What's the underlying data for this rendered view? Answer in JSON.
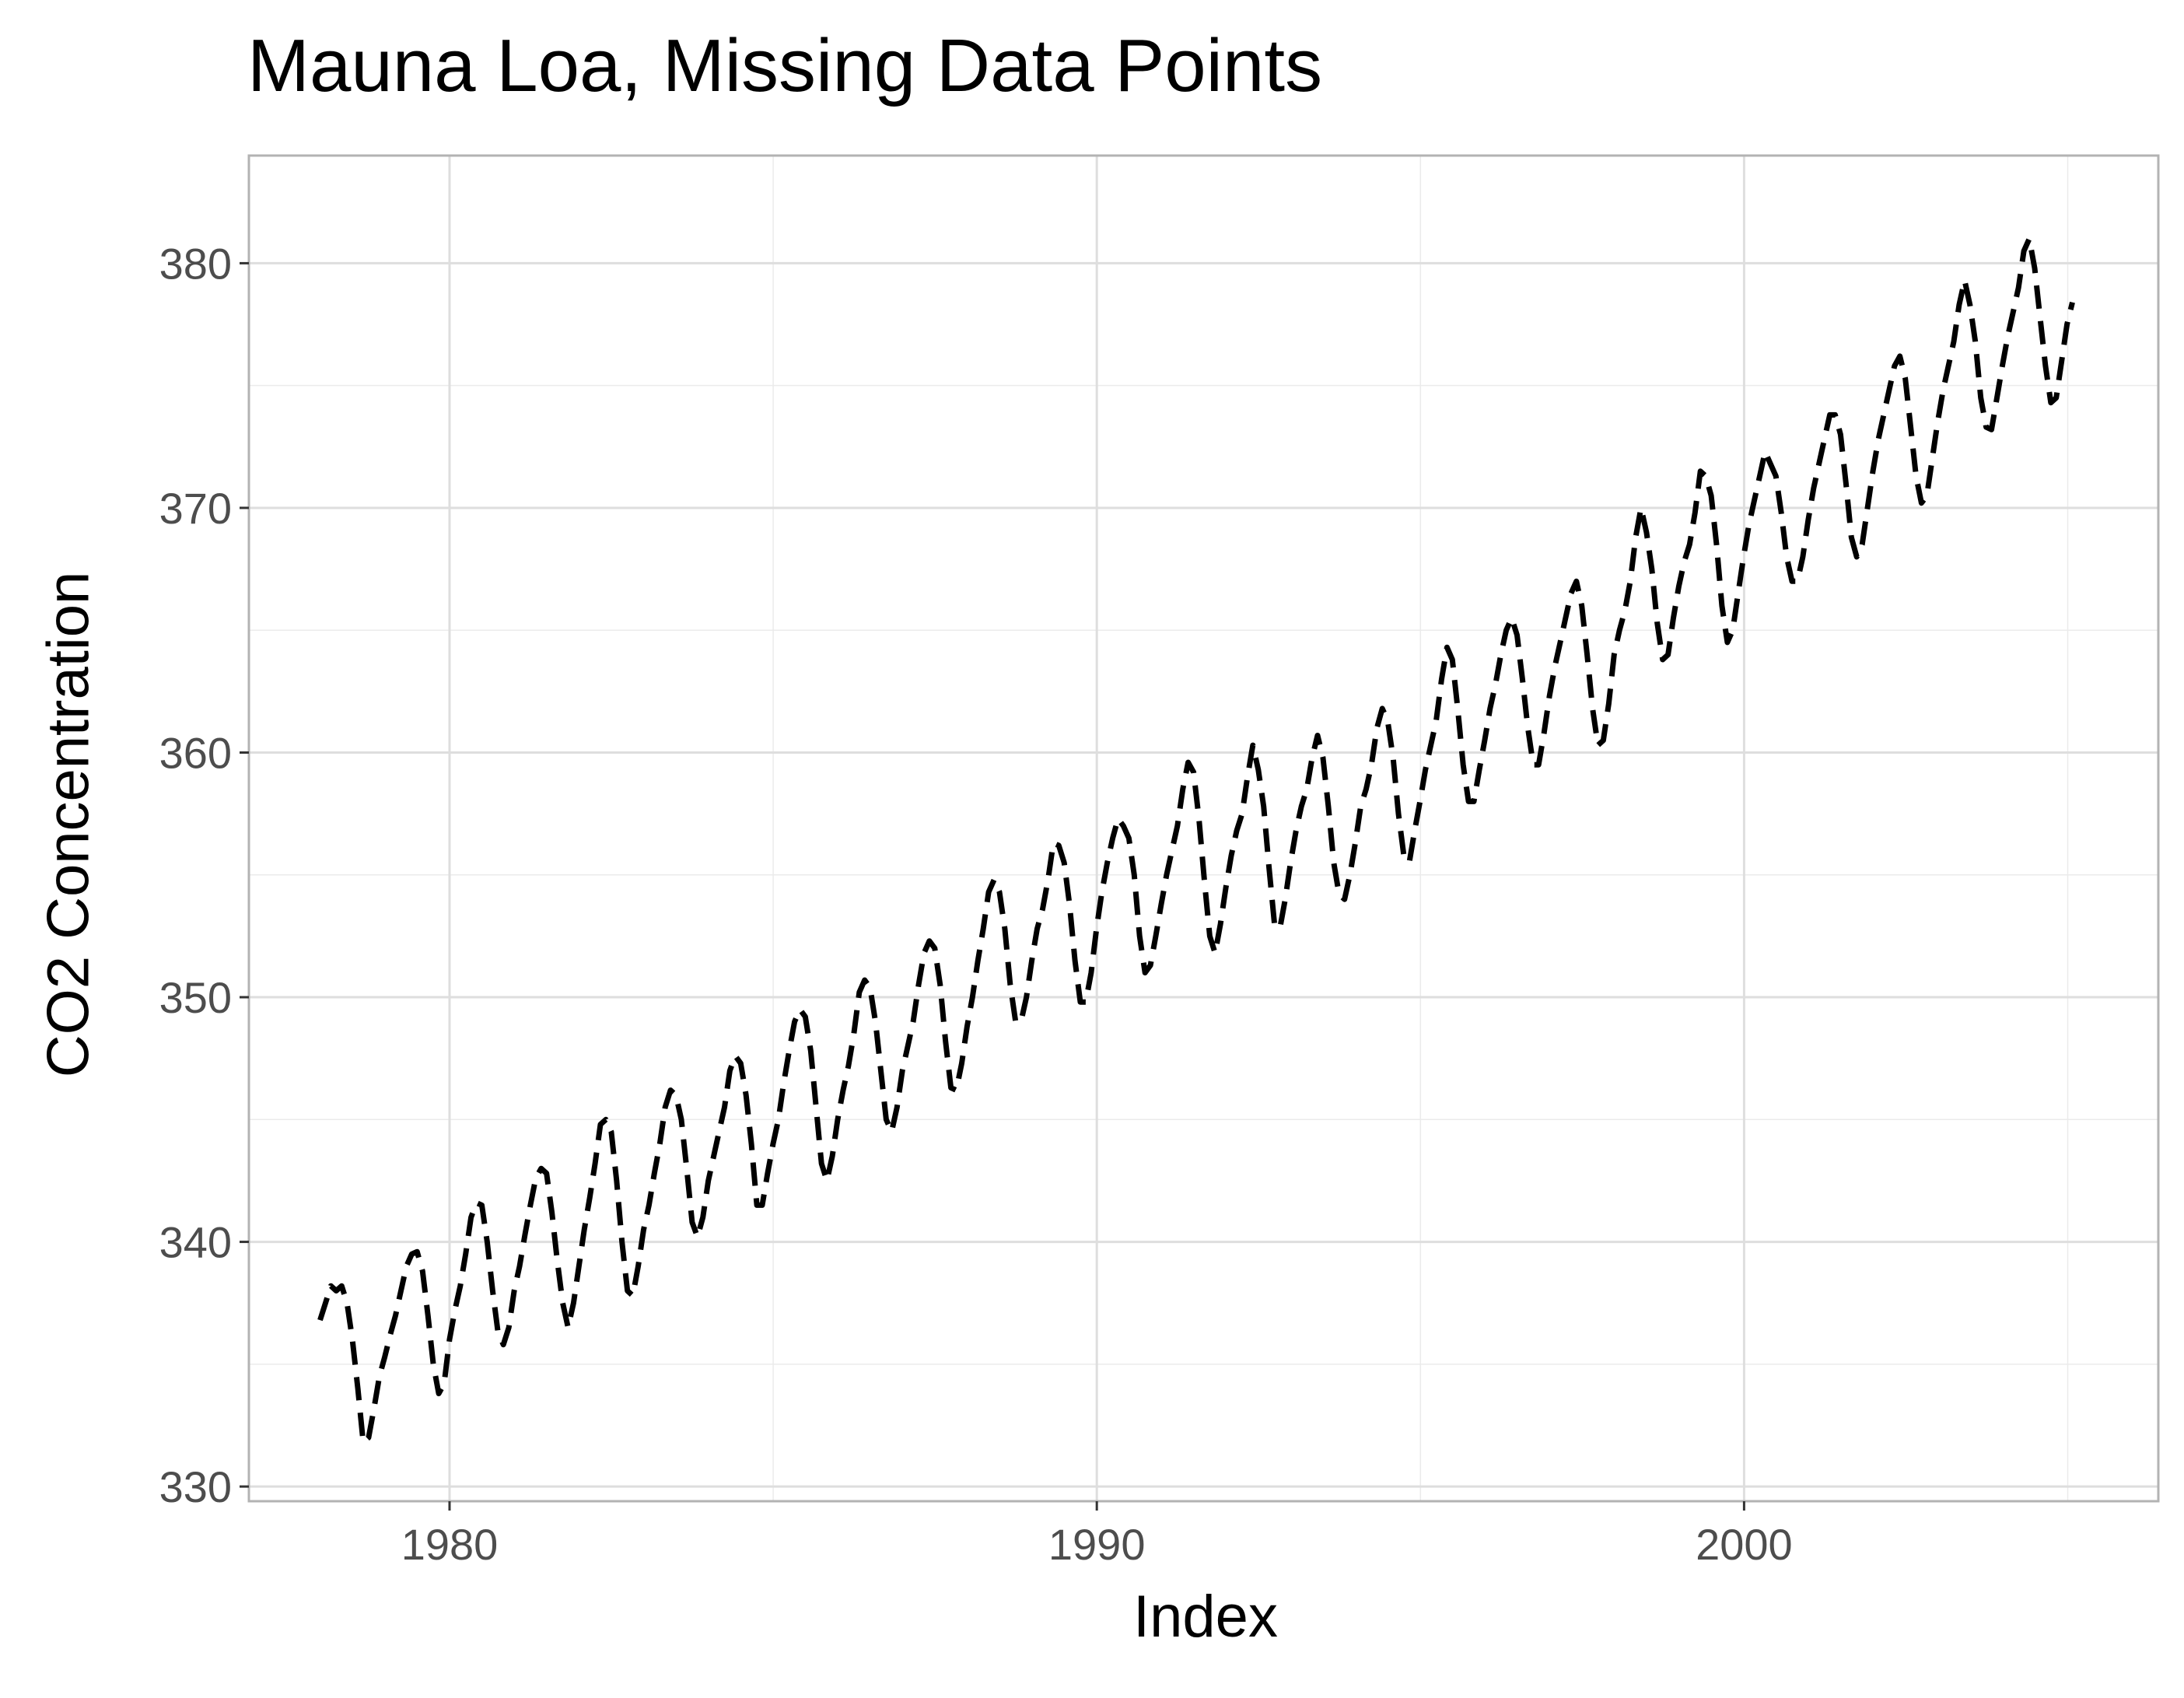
{
  "chart_data": {
    "type": "line",
    "title": "Mauna Loa, Missing Data Points",
    "xlabel": "Index",
    "ylabel": "CO2 Concentration",
    "xlim": [
      1976.9,
      2006.4
    ],
    "ylim": [
      329.4,
      384.4
    ],
    "x_ticks": [
      1980,
      1990,
      2000
    ],
    "x_tick_labels": [
      "1980",
      "1990",
      "2000"
    ],
    "y_ticks": [
      330,
      340,
      350,
      360,
      370,
      380
    ],
    "y_tick_labels": [
      "330",
      "340",
      "350",
      "360",
      "370",
      "380"
    ],
    "grid": true,
    "legend": "none",
    "line_style": "dashed",
    "line_color": "#000000",
    "series": [
      {
        "x_start": 1978.0,
        "x_step": 0.0833,
        "values": [
          336.8,
          337.5,
          338.2,
          338.0,
          338.2,
          337.5,
          336.0,
          334.0,
          331.8,
          332.0,
          333.2,
          334.5,
          335.3,
          336.2,
          337.0,
          338.0,
          339.0,
          339.5,
          339.6,
          338.8,
          337.0,
          335.0,
          333.8,
          334.2,
          336.0,
          337.2,
          338.2,
          339.5,
          341.0,
          341.6,
          341.5,
          340.0,
          338.0,
          336.3,
          335.8,
          336.5,
          338.0,
          339.0,
          340.3,
          341.5,
          342.6,
          343.0,
          342.8,
          341.2,
          339.2,
          337.5,
          336.5,
          337.5,
          339.0,
          340.5,
          341.8,
          343.2,
          344.8,
          345.0,
          344.5,
          342.5,
          340.0,
          338.0,
          337.8,
          339.0,
          340.5,
          341.5,
          342.8,
          344.0,
          345.5,
          346.2,
          346.0,
          345.0,
          343.0,
          340.8,
          340.2,
          341.0,
          342.5,
          343.5,
          344.5,
          345.5,
          347.0,
          347.6,
          347.3,
          346.0,
          344.0,
          341.5,
          341.5,
          342.8,
          344.0,
          345.0,
          346.5,
          347.8,
          349.0,
          349.5,
          349.2,
          347.8,
          345.5,
          343.2,
          342.5,
          343.5,
          345.0,
          346.2,
          347.2,
          348.5,
          350.2,
          350.7,
          350.4,
          349.0,
          347.0,
          345.0,
          344.5,
          345.5,
          347.0,
          348.0,
          349.0,
          350.5,
          351.8,
          352.3,
          352.0,
          350.5,
          348.2,
          346.3,
          346.2,
          347.3,
          348.8,
          350.0,
          351.5,
          352.8,
          354.3,
          354.8,
          354.3,
          352.8,
          350.5,
          349.0,
          349.0,
          350.0,
          351.5,
          352.8,
          353.6,
          354.8,
          356.3,
          356.2,
          355.5,
          353.8,
          351.5,
          349.8,
          349.8,
          351.0,
          352.8,
          354.3,
          355.5,
          356.5,
          357.3,
          357.0,
          356.5,
          355.0,
          352.5,
          351.0,
          351.3,
          352.5,
          353.8,
          355.0,
          356.0,
          357.0,
          358.5,
          359.6,
          359.2,
          357.3,
          354.8,
          352.5,
          351.8,
          353.0,
          354.5,
          355.8,
          356.8,
          357.5,
          359.0,
          360.3,
          359.3,
          357.8,
          355.3,
          353.0,
          352.8,
          354.0,
          355.5,
          356.8,
          357.8,
          358.5,
          359.8,
          360.7,
          359.8,
          357.8,
          355.5,
          354.2,
          354.0,
          355.0,
          356.3,
          357.8,
          358.5,
          359.5,
          361.0,
          361.8,
          361.3,
          359.8,
          357.5,
          355.8,
          355.5,
          356.8,
          358.0,
          359.3,
          360.3,
          361.3,
          363.0,
          364.3,
          363.8,
          361.8,
          359.5,
          358.0,
          358.0,
          359.3,
          360.5,
          361.8,
          362.8,
          364.0,
          365.0,
          365.5,
          364.8,
          363.0,
          361.0,
          359.5,
          359.5,
          360.8,
          362.3,
          363.5,
          364.5,
          365.5,
          366.5,
          367.0,
          366.0,
          364.0,
          361.8,
          360.3,
          360.5,
          362.0,
          364.0,
          365.0,
          365.8,
          367.0,
          368.8,
          370.0,
          369.0,
          367.5,
          365.3,
          363.8,
          364.0,
          365.5,
          366.8,
          367.8,
          368.5,
          369.8,
          371.5,
          371.3,
          370.5,
          368.5,
          366.0,
          364.5,
          365.0,
          366.5,
          368.0,
          369.3,
          370.3,
          371.3,
          372.3,
          371.8,
          371.3,
          369.8,
          368.0,
          367.0,
          367.0,
          368.0,
          369.5,
          370.8,
          371.8,
          372.8,
          373.8,
          373.8,
          373.0,
          371.0,
          368.8,
          368.0,
          368.5,
          370.0,
          371.5,
          372.8,
          373.8,
          374.8,
          375.8,
          376.2,
          375.3,
          373.3,
          371.3,
          370.2,
          370.5,
          372.0,
          373.5,
          374.8,
          375.8,
          376.8,
          378.3,
          379.3,
          378.3,
          376.8,
          374.5,
          373.3,
          373.2,
          374.5,
          375.8,
          377.0,
          378.0,
          379.0,
          380.5,
          381.0,
          379.8,
          377.8,
          375.8,
          374.3,
          374.5,
          376.0,
          377.5,
          378.4
        ]
      }
    ]
  }
}
